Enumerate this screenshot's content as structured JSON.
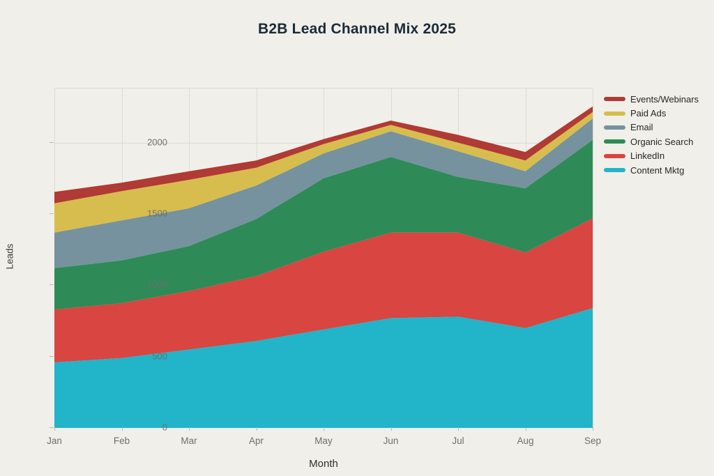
{
  "title": "B2B Lead Channel Mix 2025",
  "chart_data": {
    "type": "area",
    "stacked": true,
    "title": "B2B Lead Channel Mix 2025",
    "xlabel": "Month",
    "ylabel": "Leads",
    "categories": [
      "Jan",
      "Feb",
      "Mar",
      "Apr",
      "May",
      "Jun",
      "Jul",
      "Aug",
      "Sep"
    ],
    "yticks": [
      0,
      500,
      1000,
      1500,
      2000
    ],
    "ylim": [
      0,
      2380
    ],
    "grid": true,
    "legend_position": "right-outside-top",
    "legend_order": "top-to-bottom is reverse of stack order",
    "background_color": "#f0efe9",
    "gridline_color": "#dcdbd3",
    "title_color": "#1b2a38",
    "tick_label_color": "#6e6e6e",
    "axis_title_color": "#2f2f2f",
    "series": [
      {
        "name": "Content Mktg",
        "color": "#22b4c9",
        "values": [
          460,
          490,
          550,
          610,
          690,
          770,
          780,
          700,
          840
        ]
      },
      {
        "name": "LinkedIn",
        "color": "#d94540",
        "values": [
          370,
          385,
          410,
          455,
          545,
          600,
          590,
          530,
          630
        ]
      },
      {
        "name": "Organic Search",
        "color": "#2e8b57",
        "values": [
          290,
          300,
          315,
          400,
          515,
          530,
          390,
          450,
          550
        ]
      },
      {
        "name": "Email",
        "color": "#75929e",
        "values": [
          250,
          280,
          265,
          235,
          175,
          180,
          180,
          120,
          150
        ]
      },
      {
        "name": "Paid Ads",
        "color": "#d7bd4e",
        "values": [
          205,
          205,
          200,
          125,
          65,
          45,
          60,
          75,
          45
        ]
      },
      {
        "name": "Events/Webinars",
        "color": "#b03a34",
        "values": [
          80,
          60,
          60,
          50,
          35,
          30,
          55,
          60,
          40
        ]
      }
    ],
    "stack_totals": [
      1655,
      1720,
      1800,
      1875,
      2025,
      2155,
      2055,
      1935,
      2255
    ]
  }
}
